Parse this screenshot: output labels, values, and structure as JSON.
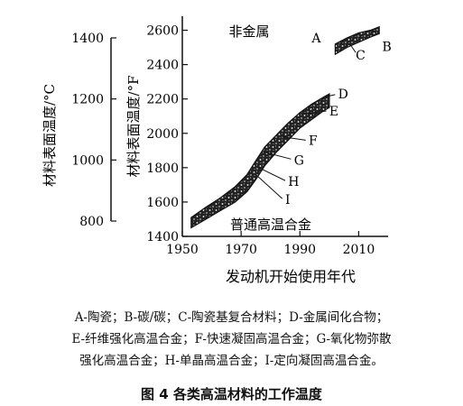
{
  "chart_data": {
    "type": "area",
    "xlabel": "发动机开始使用年代",
    "ylabel_right": "材料表面温度/°F",
    "ylabel_left": "材料表面温度/°C",
    "xlim": [
      1950,
      2020
    ],
    "ylim_f": [
      1400,
      2650
    ],
    "ylim_c": [
      760,
      1450
    ],
    "x_ticks": [
      1950,
      1970,
      1990,
      2010
    ],
    "y_ticks_f": [
      1400,
      1600,
      1800,
      2000,
      2200,
      2400,
      2600
    ],
    "y_ticks_c": [
      800,
      1000,
      1200,
      1400
    ],
    "annotations": {
      "nonmetal": "非金属",
      "superalloy": "普通高温合金"
    },
    "series": [
      {
        "type": "band",
        "x": [
          1953,
          1958,
          1963,
          1968,
          1972,
          1975,
          1978,
          1982,
          1986,
          1990,
          1994,
          1998,
          2000
        ],
        "upper": [
          1510,
          1570,
          1625,
          1690,
          1760,
          1840,
          1920,
          1990,
          2060,
          2120,
          2170,
          2210,
          2230
        ],
        "lower": [
          1450,
          1500,
          1550,
          1600,
          1660,
          1730,
          1810,
          1890,
          1960,
          2030,
          2080,
          2130,
          2150
        ]
      },
      {
        "type": "band",
        "x": [
          2002,
          2006,
          2010,
          2014,
          2017
        ],
        "upper": [
          2520,
          2555,
          2585,
          2600,
          2620
        ],
        "lower": [
          2460,
          2500,
          2530,
          2560,
          2580
        ]
      }
    ],
    "labels": [
      {
        "text": "A",
        "x": 1994,
        "y": 2555
      },
      {
        "text": "B",
        "x": 2018,
        "y": 2505
      },
      {
        "text": "C",
        "x": 2009,
        "y": 2455
      },
      {
        "text": "D",
        "x": 2003,
        "y": 2230
      },
      {
        "text": "E",
        "x": 2000,
        "y": 2130
      },
      {
        "text": "F",
        "x": 1993,
        "y": 1960
      },
      {
        "text": "G",
        "x": 1988,
        "y": 1845
      },
      {
        "text": "H",
        "x": 1986,
        "y": 1720
      },
      {
        "text": "I",
        "x": 1985,
        "y": 1615
      }
    ],
    "leader_lines": [
      {
        "label": "D",
        "x1": 1998,
        "y1": 2210,
        "x2": 2002,
        "y2": 2225
      },
      {
        "label": "E",
        "x1": 1992,
        "y1": 2115,
        "x2": 1999,
        "y2": 2130
      },
      {
        "label": "F",
        "x1": 1984,
        "y1": 1980,
        "x2": 1992,
        "y2": 1960
      },
      {
        "label": "G",
        "x1": 1978,
        "y1": 1890,
        "x2": 1987,
        "y2": 1850
      },
      {
        "label": "H",
        "x1": 1976,
        "y1": 1800,
        "x2": 1985,
        "y2": 1725
      },
      {
        "label": "I",
        "x1": 1975,
        "y1": 1760,
        "x2": 1984,
        "y2": 1620
      },
      {
        "label": "C",
        "x1": 2007,
        "y1": 2520,
        "x2": 2009,
        "y2": 2470
      }
    ]
  },
  "legend": {
    "line1": "A-陶瓷；B-碳/碳；C-陶瓷基复合材料；D-金属间化合物；",
    "line2": "E-纤维强化高温合金；F-快速凝固高温合金；G-氧化物弥散",
    "line3": "强化高温合金；H-单晶高温合金；I-定向凝固高温合金。"
  },
  "caption": "图 4    各类高温材料的工作温度"
}
